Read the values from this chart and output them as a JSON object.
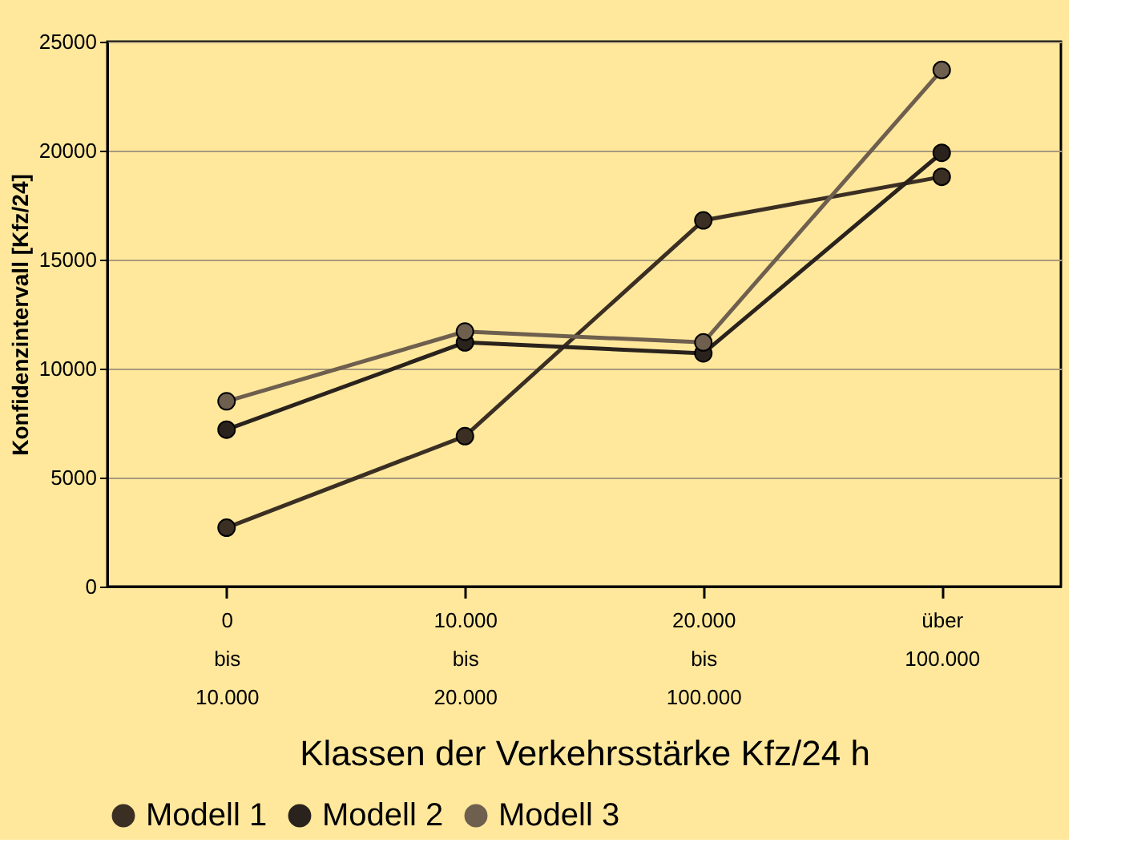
{
  "chart_data": {
    "type": "line",
    "categories": [
      "0\nbis\n10.000",
      "10.000\nbis\n20.000",
      "20.000\nbis\n100.000",
      "über\n100.000"
    ],
    "series": [
      {
        "name": "Modell 1",
        "color": "#3b2f24",
        "values": [
          2700,
          6900,
          16800,
          18800
        ]
      },
      {
        "name": "Modell 2",
        "color": "#2a221c",
        "values": [
          7200,
          11200,
          10700,
          19900
        ]
      },
      {
        "name": "Modell 3",
        "color": "#6e5f4e",
        "values": [
          8500,
          11700,
          11200,
          23700
        ]
      }
    ],
    "xlabel": "Klassen der Verkehrsstärke Kfz/24 h",
    "ylabel": "Konfidenzintervall [Kfz/24]",
    "ylim": [
      0,
      25000
    ],
    "yticks": [
      0,
      5000,
      10000,
      15000,
      20000,
      25000
    ],
    "grid": "y",
    "legend": "bottom",
    "marker": "circle",
    "line_style": "solid"
  }
}
